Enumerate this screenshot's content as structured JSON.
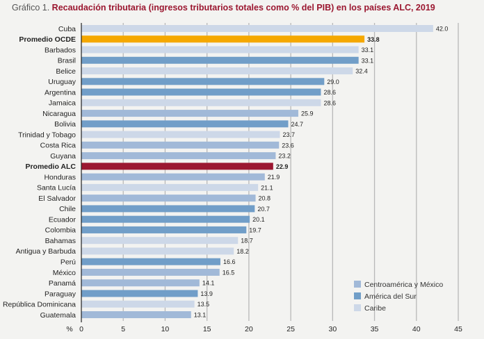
{
  "chart_data": {
    "type": "bar",
    "orientation": "horizontal",
    "title_prefix": "Gráfico 1.",
    "title": "Recaudación tributaria (ingresos tributarios totales como % del PIB) en los países ALC, 2019",
    "xlabel": "%",
    "xlim": [
      0,
      45
    ],
    "xticks": [
      0,
      5,
      10,
      15,
      20,
      25,
      30,
      35,
      40,
      45
    ],
    "grid": true,
    "legend_position": "bottom-right",
    "colors": {
      "ca": "#a1b9d8",
      "sur": "#719ec8",
      "caribe": "#cdd8e8",
      "ocde": "#f5a800",
      "alc": "#9b1730"
    },
    "legend": [
      {
        "key": "ca",
        "label": "Centroamérica y México"
      },
      {
        "key": "sur",
        "label": "América del Sur"
      },
      {
        "key": "caribe",
        "label": "Caribe"
      }
    ],
    "bars": [
      {
        "label": "Cuba",
        "value": 42.0,
        "group": "caribe"
      },
      {
        "label": "Promedio OCDE",
        "value": 33.8,
        "group": "ocde",
        "bold": true
      },
      {
        "label": "Barbados",
        "value": 33.1,
        "group": "caribe"
      },
      {
        "label": "Brasil",
        "value": 33.1,
        "group": "sur"
      },
      {
        "label": "Belice",
        "value": 32.4,
        "group": "caribe"
      },
      {
        "label": "Uruguay",
        "value": 29.0,
        "group": "sur"
      },
      {
        "label": "Argentina",
        "value": 28.6,
        "group": "sur"
      },
      {
        "label": "Jamaica",
        "value": 28.6,
        "group": "caribe"
      },
      {
        "label": "Nicaragua",
        "value": 25.9,
        "group": "ca"
      },
      {
        "label": "Bolivia",
        "value": 24.7,
        "group": "sur"
      },
      {
        "label": "Trinidad y Tobago",
        "value": 23.7,
        "group": "caribe"
      },
      {
        "label": "Costa Rica",
        "value": 23.6,
        "group": "ca"
      },
      {
        "label": "Guyana",
        "value": 23.2,
        "group": "ca"
      },
      {
        "label": "Promedio ALC",
        "value": 22.9,
        "group": "alc",
        "bold": true
      },
      {
        "label": "Honduras",
        "value": 21.9,
        "group": "ca"
      },
      {
        "label": "Santa Lucía",
        "value": 21.1,
        "group": "caribe"
      },
      {
        "label": "El Salvador",
        "value": 20.8,
        "group": "ca"
      },
      {
        "label": "Chile",
        "value": 20.7,
        "group": "sur"
      },
      {
        "label": "Ecuador",
        "value": 20.1,
        "group": "sur"
      },
      {
        "label": "Colombia",
        "value": 19.7,
        "group": "sur"
      },
      {
        "label": "Bahamas",
        "value": 18.7,
        "group": "caribe"
      },
      {
        "label": "Antigua y Barbuda",
        "value": 18.2,
        "group": "caribe"
      },
      {
        "label": "Perú",
        "value": 16.6,
        "group": "sur"
      },
      {
        "label": "México",
        "value": 16.5,
        "group": "ca"
      },
      {
        "label": "Panamá",
        "value": 14.1,
        "group": "ca"
      },
      {
        "label": "Paraguay",
        "value": 13.9,
        "group": "sur"
      },
      {
        "label": "República Dominicana",
        "value": 13.5,
        "group": "caribe"
      },
      {
        "label": "Guatemala",
        "value": 13.1,
        "group": "ca"
      }
    ]
  }
}
